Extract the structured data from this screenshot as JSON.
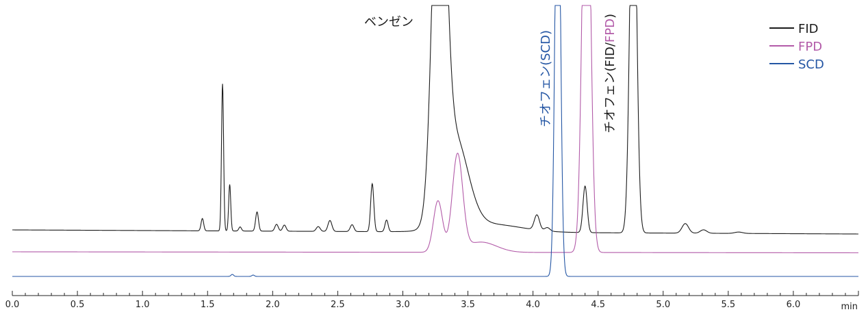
{
  "chart_data": {
    "type": "line",
    "title": "",
    "xlabel": "",
    "ylabel": "",
    "x_unit": "min",
    "xlim": [
      0.0,
      6.5
    ],
    "xticks": [
      "0.0",
      "0.5",
      "1.0",
      "1.5",
      "2.0",
      "2.5",
      "3.0",
      "3.5",
      "4.0",
      "4.5",
      "5.0",
      "5.5",
      "6.0"
    ],
    "grid": false,
    "legend": {
      "placement": "top-right"
    },
    "series": [
      {
        "name": "FID",
        "color": "#1a1a1a",
        "baseline": 0,
        "peaks": [
          {
            "t": 1.46,
            "h": 18,
            "w": 0.01
          },
          {
            "t": 1.615,
            "h": 215,
            "w": 0.008
          },
          {
            "t": 1.67,
            "h": 68,
            "w": 0.008
          },
          {
            "t": 1.75,
            "h": 6,
            "w": 0.01
          },
          {
            "t": 1.88,
            "h": 28,
            "w": 0.011
          },
          {
            "t": 2.03,
            "h": 10,
            "w": 0.013
          },
          {
            "t": 2.09,
            "h": 9,
            "w": 0.013
          },
          {
            "t": 2.35,
            "h": 7,
            "w": 0.015
          },
          {
            "t": 2.44,
            "h": 16,
            "w": 0.015
          },
          {
            "t": 2.61,
            "h": 10,
            "w": 0.014
          },
          {
            "t": 2.765,
            "h": 70,
            "w": 0.012
          },
          {
            "t": 2.875,
            "h": 17,
            "w": 0.012
          },
          {
            "t": 3.28,
            "h": 600,
            "w": 0.05
          },
          {
            "t": 3.4,
            "h": 130,
            "w": 0.1
          },
          {
            "t": 3.65,
            "h": 12,
            "w": 0.25
          },
          {
            "t": 4.03,
            "h": 22,
            "w": 0.02
          },
          {
            "t": 4.11,
            "h": 5,
            "w": 0.02
          },
          {
            "t": 4.4,
            "h": 68,
            "w": 0.016
          },
          {
            "t": 4.77,
            "h": 600,
            "w": 0.025
          },
          {
            "t": 5.17,
            "h": 14,
            "w": 0.025
          },
          {
            "t": 5.31,
            "h": 5,
            "w": 0.025
          },
          {
            "t": 5.58,
            "h": 2,
            "w": 0.03
          }
        ]
      },
      {
        "name": "FPD",
        "color": "#b25aa8",
        "baseline": 0,
        "peaks": [
          {
            "t": 3.27,
            "h": 75,
            "w": 0.035
          },
          {
            "t": 3.42,
            "h": 140,
            "w": 0.04
          },
          {
            "t": 3.6,
            "h": 15,
            "w": 0.12
          },
          {
            "t": 4.41,
            "h": 700,
            "w": 0.03
          }
        ]
      },
      {
        "name": "SCD",
        "color": "#2456a4",
        "baseline": 0,
        "peaks": [
          {
            "t": 1.69,
            "h": 3,
            "w": 0.01
          },
          {
            "t": 1.85,
            "h": 2,
            "w": 0.01
          },
          {
            "t": 4.19,
            "h": 700,
            "w": 0.02
          }
        ]
      }
    ],
    "annotations": [
      {
        "text": "ベンゼン",
        "color": "#1a1a1a",
        "t": 3.0,
        "rotate": 0
      },
      {
        "text": "チオフェン(SCD)",
        "color": "#2456a4",
        "t": 4.08,
        "rotate": -90
      },
      {
        "text": "チオフェン(FID/",
        "color": "#1a1a1a",
        "t": 4.58,
        "rotate": -90,
        "suffix": "FPD",
        "suffix_color": "#b25aa8",
        "tail": ")"
      }
    ]
  }
}
